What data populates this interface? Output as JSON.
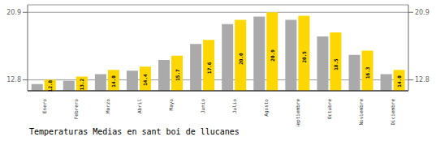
{
  "chart_data": {
    "type": "bar",
    "title": "Temperaturas Medias en sant boi de llucanes",
    "categories": [
      "Enero",
      "Febrero",
      "Marzo",
      "Abril",
      "Mayo",
      "Junio",
      "Julio",
      "Agosto",
      "Septiembre",
      "Octubre",
      "Noviembre",
      "Diciembre"
    ],
    "series": [
      {
        "color": "#AAAAAA",
        "values": [
          12.3,
          12.7,
          13.5,
          13.9,
          15.2,
          17.1,
          19.5,
          20.4,
          20.0,
          18.0,
          15.8,
          13.5
        ]
      },
      {
        "color": "#FFD700",
        "values": [
          12.8,
          13.2,
          14.0,
          14.4,
          15.7,
          17.6,
          20.0,
          20.9,
          20.5,
          18.5,
          16.3,
          14.0
        ],
        "value_labels": [
          "12.8",
          "13.2",
          "14.0",
          "14.4",
          "15.7",
          "17.6",
          "20.0",
          "20.9",
          "20.5",
          "18.5",
          "16.3",
          "14.0"
        ],
        "data_labels": true
      }
    ],
    "ylim": [
      11.5,
      21.8
    ],
    "yticks": [
      12.8,
      20.9
    ],
    "y2lim": [
      11.5,
      21.8
    ],
    "y2ticks": [
      12.8,
      20.9
    ],
    "grid": true
  }
}
